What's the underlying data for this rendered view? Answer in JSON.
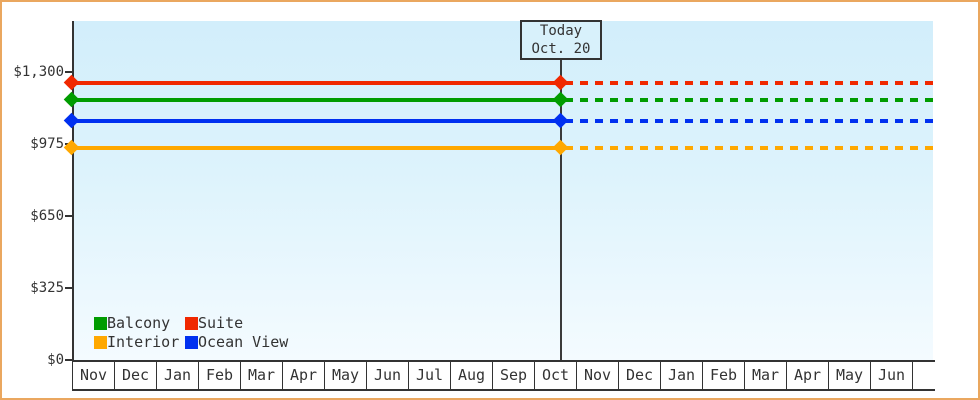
{
  "colors": {
    "outer_border": "#eaa75f",
    "plot_bg_top": "#d2eefb",
    "plot_bg_bottom": "#f4fbff",
    "axis": "#333333",
    "text": "#333333",
    "today_box_bg": "#d8f1fb"
  },
  "chart_data": {
    "type": "line",
    "title": "",
    "x_categories": [
      "Nov",
      "Dec",
      "Jan",
      "Feb",
      "Mar",
      "Apr",
      "May",
      "Jun",
      "Jul",
      "Aug",
      "Sep",
      "Oct",
      "Nov",
      "Dec",
      "Jan",
      "Feb",
      "Mar",
      "Apr",
      "May",
      "Jun"
    ],
    "y_ticks": [
      {
        "label": "$0",
        "value": 0
      },
      {
        "label": "$325",
        "value": 325
      },
      {
        "label": "$650",
        "value": 650
      },
      {
        "label": "$975",
        "value": 975
      },
      {
        "label": "$1,300",
        "value": 1300
      }
    ],
    "ylim": [
      0,
      1525
    ],
    "grid": false,
    "legend_position": "inside-bottom-left",
    "today_marker": {
      "line1": "Today",
      "line2": "Oct. 20",
      "x_category": "Oct",
      "x_index": 11,
      "day_fraction": 0.645
    },
    "series": [
      {
        "name": "Suite",
        "color": "#f02800",
        "value": 1250,
        "style": "solid-before-today-dashed-after"
      },
      {
        "name": "Balcony",
        "color": "#009c00",
        "value": 1175,
        "style": "solid-before-today-dashed-after"
      },
      {
        "name": "Ocean View",
        "color": "#0030f0",
        "value": 1080,
        "style": "solid-before-today-dashed-after"
      },
      {
        "name": "Interior",
        "color": "#ffa800",
        "value": 955,
        "style": "solid-before-today-dashed-after"
      }
    ],
    "legend_items": [
      {
        "label": "Balcony",
        "color": "#009c00"
      },
      {
        "label": "Suite",
        "color": "#f02800"
      },
      {
        "label": "Interior",
        "color": "#ffa800"
      },
      {
        "label": "Ocean View",
        "color": "#0030f0"
      }
    ]
  }
}
